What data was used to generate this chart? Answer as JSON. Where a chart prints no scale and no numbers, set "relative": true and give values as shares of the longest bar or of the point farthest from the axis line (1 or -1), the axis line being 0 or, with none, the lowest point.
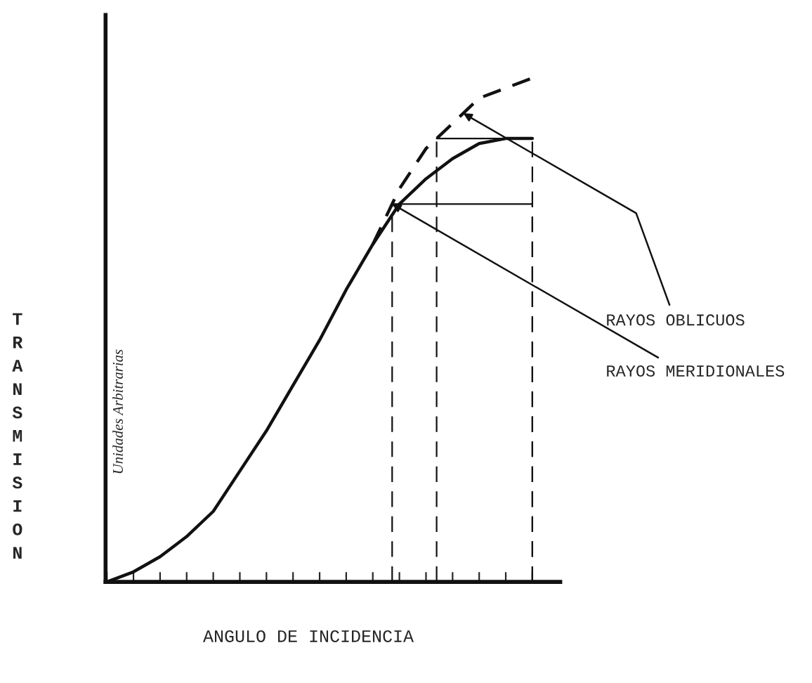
{
  "chart_data": {
    "type": "line",
    "relative": true,
    "xlabel": "ANGULO DE INCIDENCIA",
    "ylabel": "TRANSMISION",
    "categories": [
      null,
      null,
      null,
      null,
      null,
      null,
      null,
      null,
      null,
      null,
      null,
      null,
      null,
      null,
      null,
      null,
      null
    ],
    "series": [
      {
        "color": "#111111",
        "line_style": "solid",
        "values": [
          0,
          0.02,
          0.05,
          0.09,
          0.14,
          0.22,
          0.3,
          0.39,
          0.48,
          0.58,
          0.67,
          0.75,
          0.8,
          0.84,
          0.87,
          0.88,
          0.88
        ]
      },
      {
        "color": "#111111",
        "line_style": "dashed",
        "values": [
          null,
          null,
          null,
          null,
          null,
          null,
          null,
          null,
          null,
          null,
          0.67,
          0.78,
          0.86,
          0.91,
          0.96,
          0.98,
          1.0
        ]
      }
    ],
    "ref_lines": [
      {
        "axis": "y",
        "value": 0.75,
        "color": "#111111",
        "line_style": "solid"
      },
      {
        "axis": "y",
        "value": 0.88,
        "color": "#111111",
        "line_style": "solid"
      }
    ],
    "annotations": [
      "RAYOS OBLICUOS",
      "RAYOS MERIDIONALES",
      "Unidades Arbitrarias"
    ],
    "grid": false,
    "marker": "none"
  }
}
